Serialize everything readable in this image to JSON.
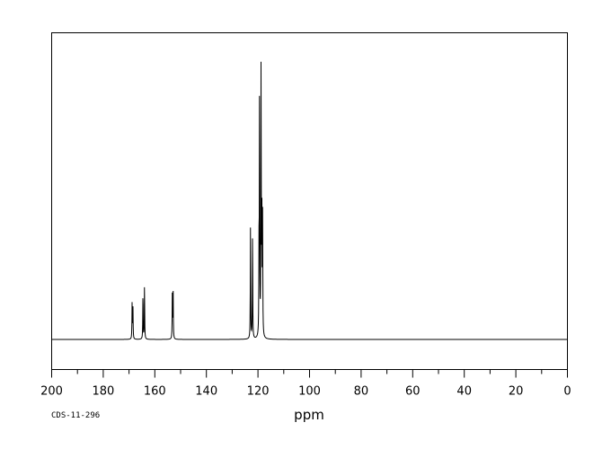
{
  "chart_data": {
    "type": "line",
    "xlabel": "ppm",
    "ylabel": "",
    "xlim": [
      200,
      0
    ],
    "x_reversed": true,
    "ylim": [
      0,
      1.0
    ],
    "grid": false,
    "x_ticks_major": [
      200,
      180,
      160,
      140,
      120,
      100,
      80,
      60,
      40,
      20,
      0
    ],
    "x_ticks_minor": [
      190,
      170,
      150,
      130,
      110,
      90,
      70,
      50,
      30,
      10
    ],
    "peaks": [
      {
        "ppm": 168.8,
        "height": 0.13
      },
      {
        "ppm": 168.5,
        "height": 0.13
      },
      {
        "ppm": 164.6,
        "height": 0.17
      },
      {
        "ppm": 164.0,
        "height": 0.2
      },
      {
        "ppm": 153.2,
        "height": 0.17
      },
      {
        "ppm": 152.9,
        "height": 0.18
      },
      {
        "ppm": 122.9,
        "height": 0.4
      },
      {
        "ppm": 122.1,
        "height": 0.39
      },
      {
        "ppm": 119.6,
        "height": 0.27
      },
      {
        "ppm": 119.4,
        "height": 0.88
      },
      {
        "ppm": 118.8,
        "height": 0.97
      },
      {
        "ppm": 118.5,
        "height": 0.48
      },
      {
        "ppm": 118.2,
        "height": 0.42
      }
    ],
    "series": [
      {
        "values": []
      }
    ]
  },
  "sample_code": "CDS-11-296"
}
